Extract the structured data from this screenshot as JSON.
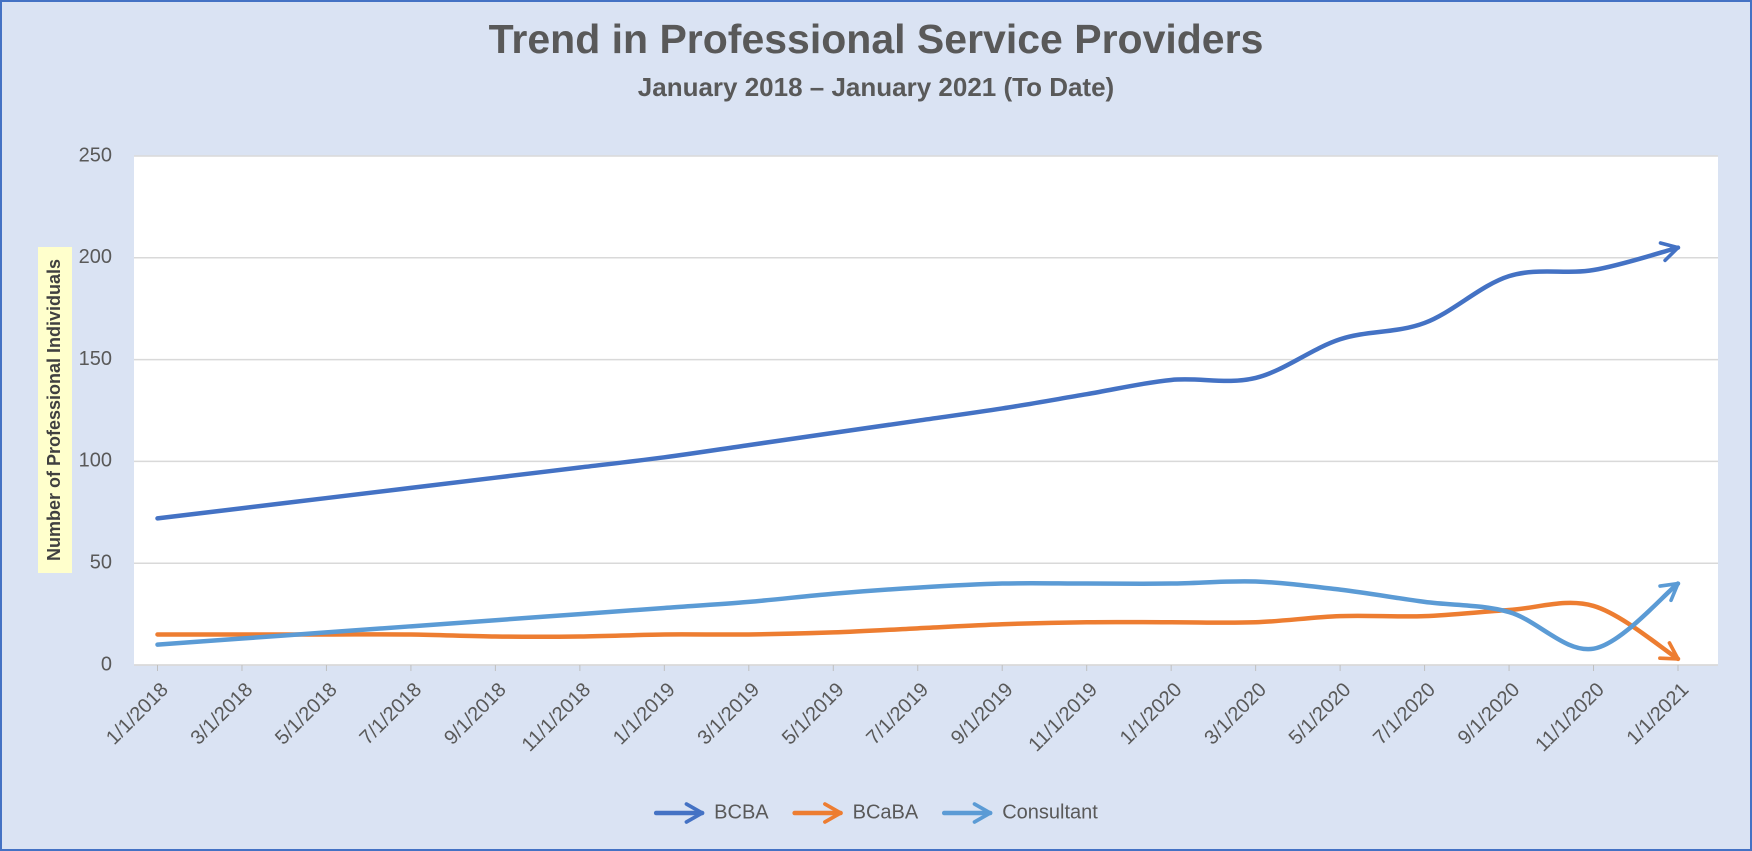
{
  "chart_data": {
    "type": "line",
    "title": "Trend in Professional Service Providers",
    "subtitle": "January 2018 – January 2021 (To Date)",
    "y_label": "Number of Professional Individuals",
    "categories": [
      "1/1/2018",
      "3/1/2018",
      "5/1/2018",
      "7/1/2018",
      "9/1/2018",
      "11/1/2018",
      "1/1/2019",
      "3/1/2019",
      "5/1/2019",
      "7/1/2019",
      "9/1/2019",
      "11/1/2019",
      "1/1/2020",
      "3/1/2020",
      "5/1/2020",
      "7/1/2020",
      "9/1/2020",
      "11/1/2020",
      "1/1/2021"
    ],
    "series": [
      {
        "name": "BCBA",
        "color": "#4472c4",
        "values": [
          72,
          77,
          82,
          87,
          92,
          97,
          102,
          108,
          114,
          120,
          126,
          133,
          140,
          141,
          160,
          168,
          191,
          194,
          205
        ]
      },
      {
        "name": "BCaBA",
        "color": "#ed7d31",
        "values": [
          15,
          15,
          15,
          15,
          14,
          14,
          15,
          15,
          16,
          18,
          20,
          21,
          21,
          21,
          24,
          24,
          27,
          29,
          3
        ]
      },
      {
        "name": "Consultant",
        "color": "#5b9bd5",
        "values": [
          10,
          13,
          16,
          19,
          22,
          25,
          28,
          31,
          35,
          38,
          40,
          40,
          40,
          41,
          37,
          31,
          26,
          8,
          40
        ]
      }
    ],
    "ylim": [
      0,
      250
    ],
    "yticks": [
      0,
      50,
      100,
      150,
      200,
      250
    ],
    "grid": true,
    "legend": "bottom"
  }
}
